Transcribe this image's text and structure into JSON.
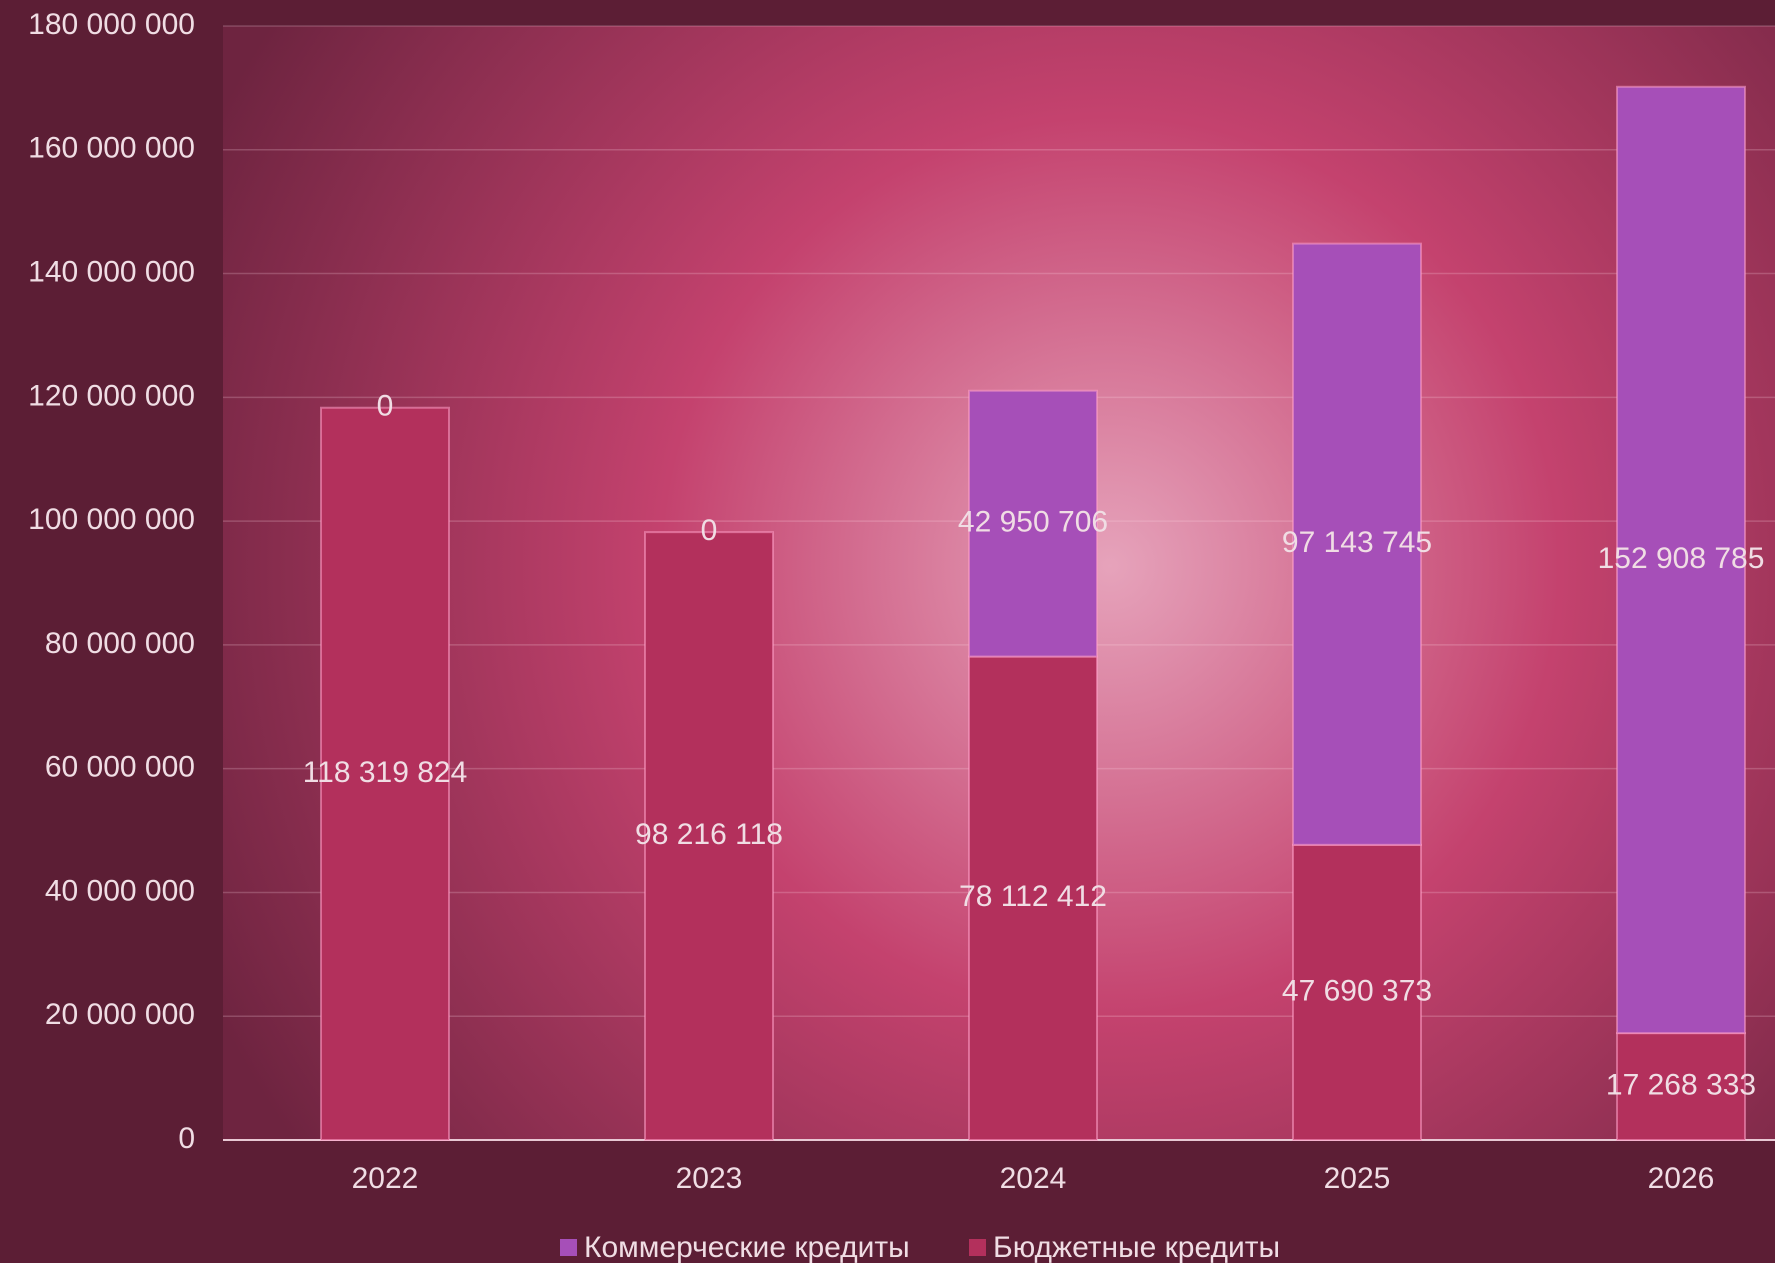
{
  "chart_data": {
    "type": "stacked-bar",
    "categories": [
      "2022",
      "2023",
      "2024",
      "2025",
      "2026"
    ],
    "series": [
      {
        "name": "Коммерческие кредиты",
        "color": "#a64fb8",
        "values": [
          0,
          0,
          42950706,
          97143745,
          152908785
        ],
        "value_labels": [
          "0",
          "0",
          "42 950 706",
          "97 143 745",
          "152 908 785"
        ]
      },
      {
        "name": "Бюджетные кредиты",
        "color": "#b3305c",
        "values": [
          118319824,
          98216118,
          78112412,
          47690373,
          17268333
        ],
        "value_labels": [
          "118 319 824",
          "98 216 118",
          "78 112 412",
          "47 690 373",
          "17 268 333"
        ]
      }
    ],
    "ylim": [
      0,
      180000000
    ],
    "yticks": [
      0,
      {
        "value": 20000000,
        "label": "20 000 000"
      },
      {
        "value": 40000000,
        "label": "40 000 000"
      },
      {
        "value": 60000000,
        "label": "60 000 000"
      },
      {
        "value": 80000000,
        "label": "80 000 000"
      },
      {
        "value": 100000000,
        "label": "100 000 000"
      },
      {
        "value": 120000000,
        "label": "120 000 000"
      },
      {
        "value": 140000000,
        "label": "140 000 000"
      },
      {
        "value": 160000000,
        "label": "160 000 000"
      },
      {
        "value": 180000000,
        "label": "180 000 000"
      }
    ],
    "grid": true,
    "legend": "bottom"
  }
}
